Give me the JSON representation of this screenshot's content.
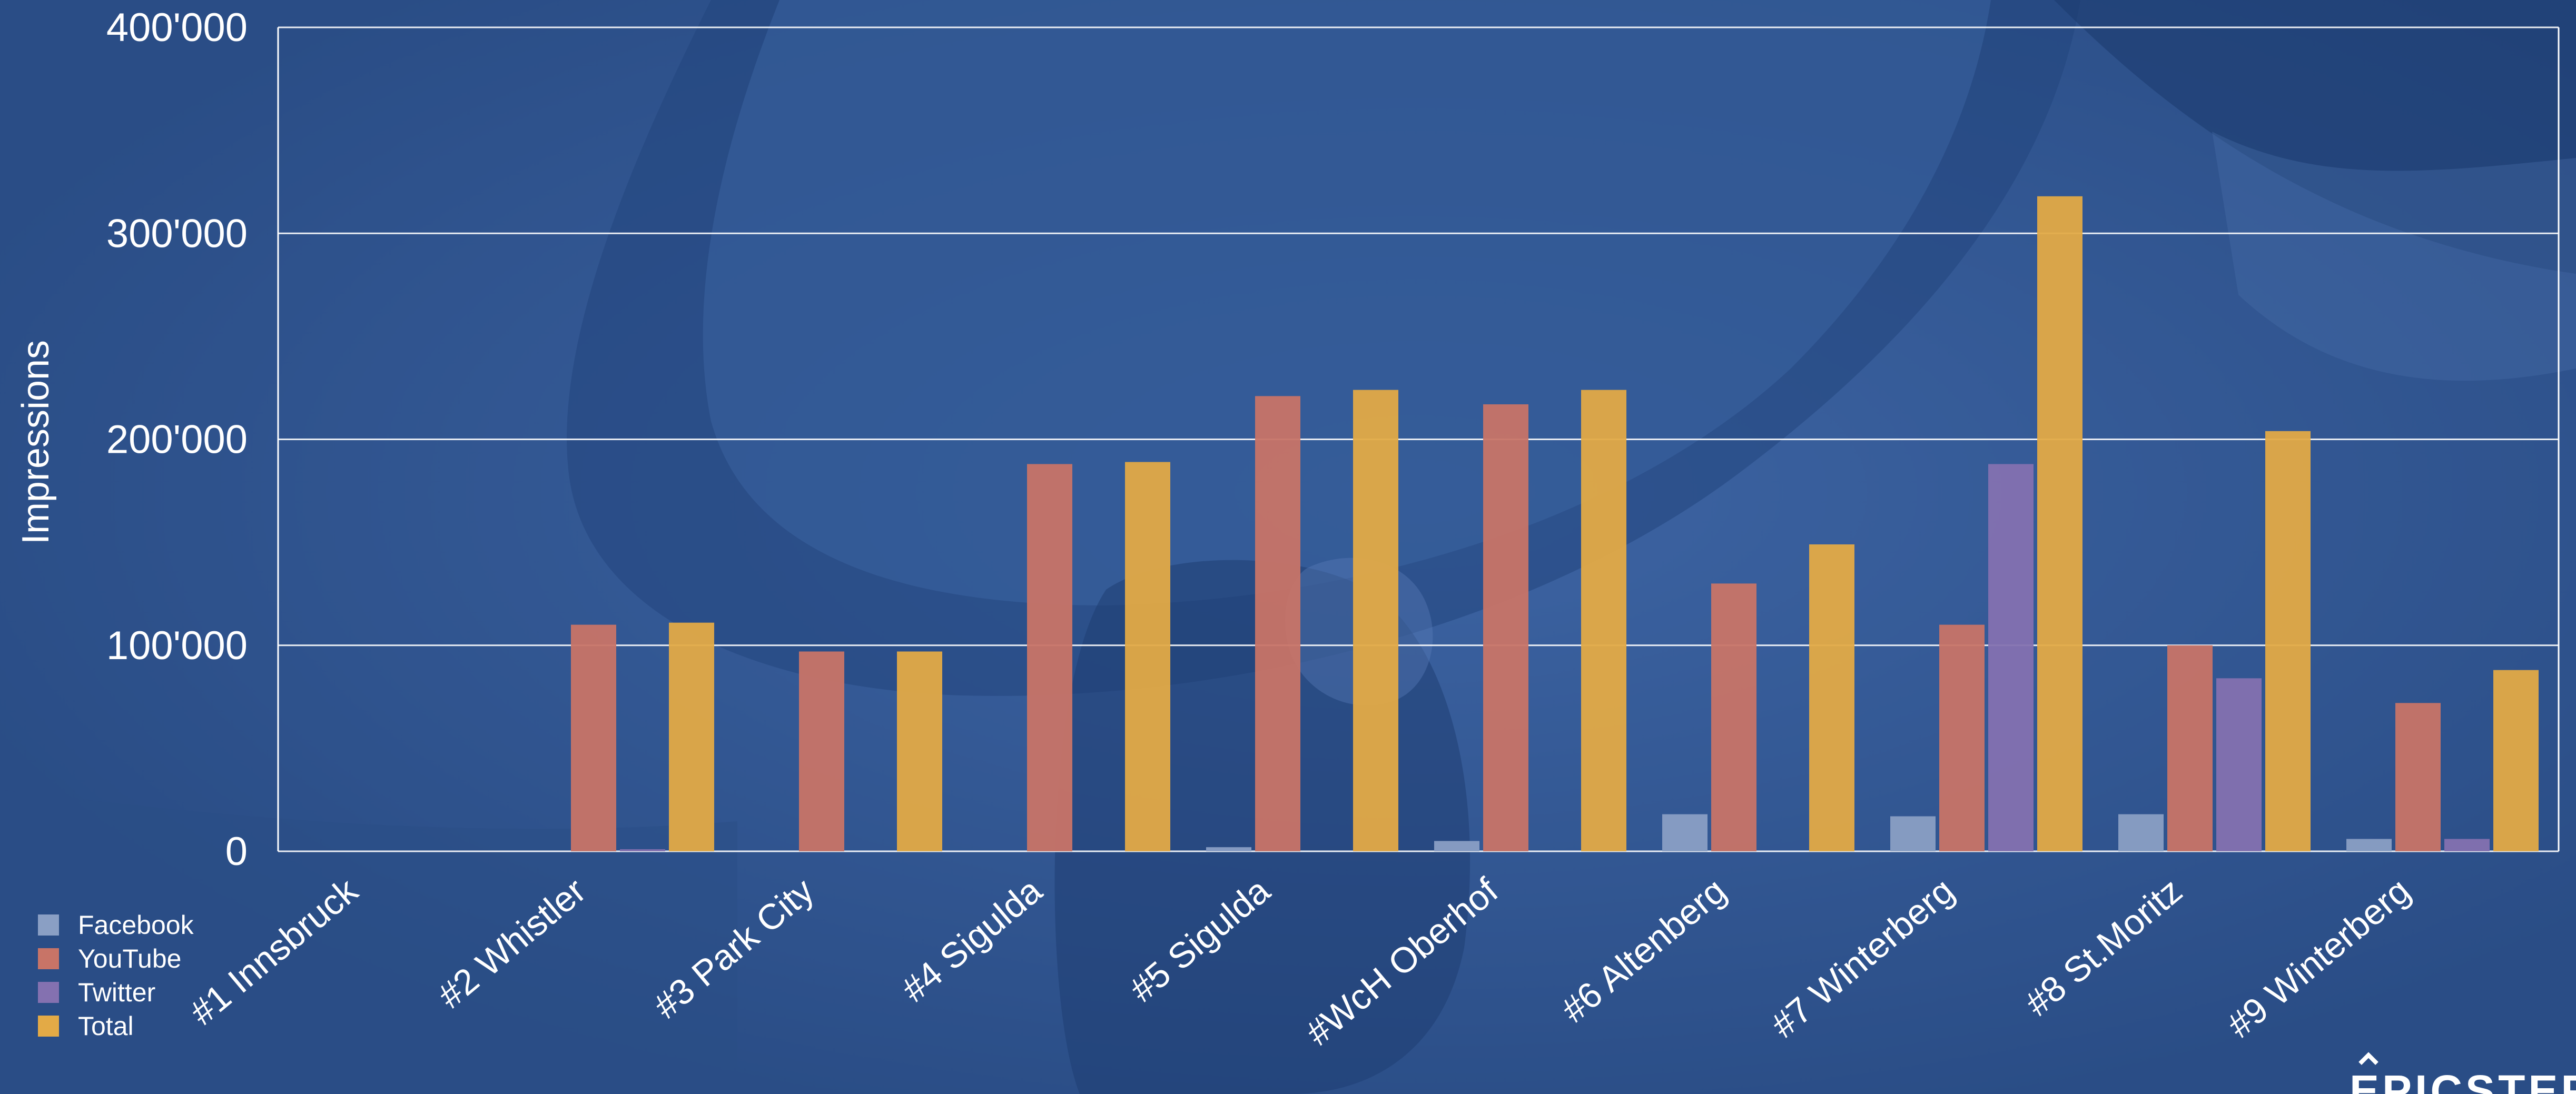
{
  "chart_data": {
    "type": "bar",
    "ylabel": "Impressions",
    "xlabel": "",
    "ylim": [
      0,
      400000
    ],
    "yticks": [
      {
        "value": 0,
        "label": "0"
      },
      {
        "value": 100000,
        "label": "100'000"
      },
      {
        "value": 200000,
        "label": "200'000"
      },
      {
        "value": 300000,
        "label": "300'000"
      },
      {
        "value": 400000,
        "label": "400'000"
      }
    ],
    "categories": [
      "#1 Innsbruck",
      "#2 Whistler",
      "#3 Park City",
      "#4 Sigulda",
      "#5 Sigulda",
      "#WcH Oberhof",
      "#6 Altenberg",
      "#7 Winterberg",
      "#8 St.Moritz",
      "#9 Winterberg"
    ],
    "series": [
      {
        "name": "Facebook",
        "color": "#8a9fc4",
        "values": [
          0,
          0,
          0,
          0,
          2000,
          5000,
          18000,
          17000,
          18000,
          6000
        ]
      },
      {
        "name": "YouTube",
        "color": "#c87467",
        "values": [
          0,
          110000,
          97000,
          188000,
          221000,
          217000,
          130000,
          110000,
          100000,
          72000
        ]
      },
      {
        "name": "Twitter",
        "color": "#8471b0",
        "values": [
          0,
          1000,
          0,
          0,
          0,
          0,
          0,
          188000,
          84000,
          6000
        ]
      },
      {
        "name": "Total",
        "color": "#e3aa46",
        "values": [
          0,
          111000,
          97000,
          189000,
          224000,
          224000,
          149000,
          318000,
          204000,
          88000
        ]
      }
    ],
    "grid": true,
    "legend_position": "bottom-left"
  },
  "brand": {
    "text": "EPICSTEP"
  }
}
